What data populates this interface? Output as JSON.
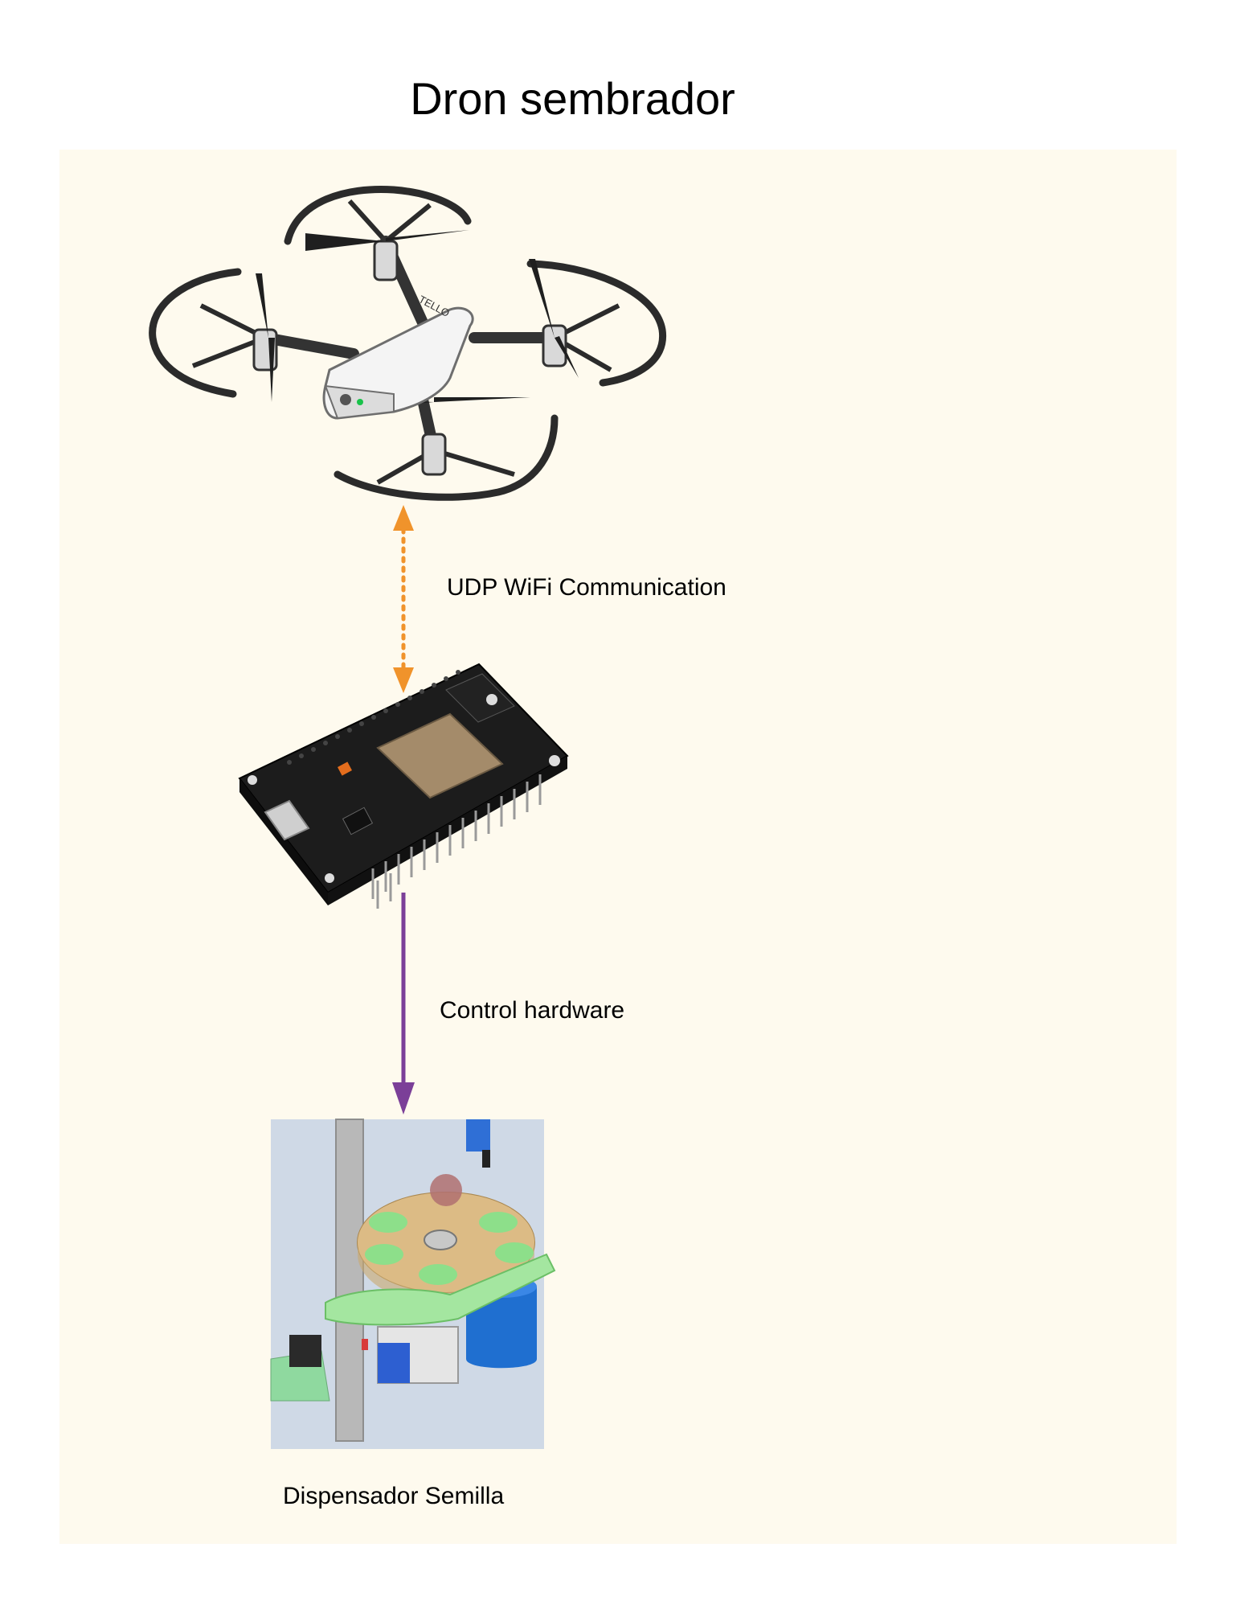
{
  "diagram": {
    "title": "Dron sembrador",
    "nodes": {
      "drone": {
        "name": "drone-image",
        "brand": "TELLO"
      },
      "controller": {
        "name": "esp32-board-image"
      },
      "dispenser": {
        "label": "Dispensador Semilla"
      }
    },
    "edges": [
      {
        "from": "drone",
        "to": "controller",
        "label": "UDP WiFi Communication",
        "style": "dotted",
        "direction": "both",
        "color": "#f0932b"
      },
      {
        "from": "controller",
        "to": "dispenser",
        "label": "Control hardware",
        "style": "solid",
        "direction": "forward",
        "color": "#7b3f98"
      }
    ]
  }
}
